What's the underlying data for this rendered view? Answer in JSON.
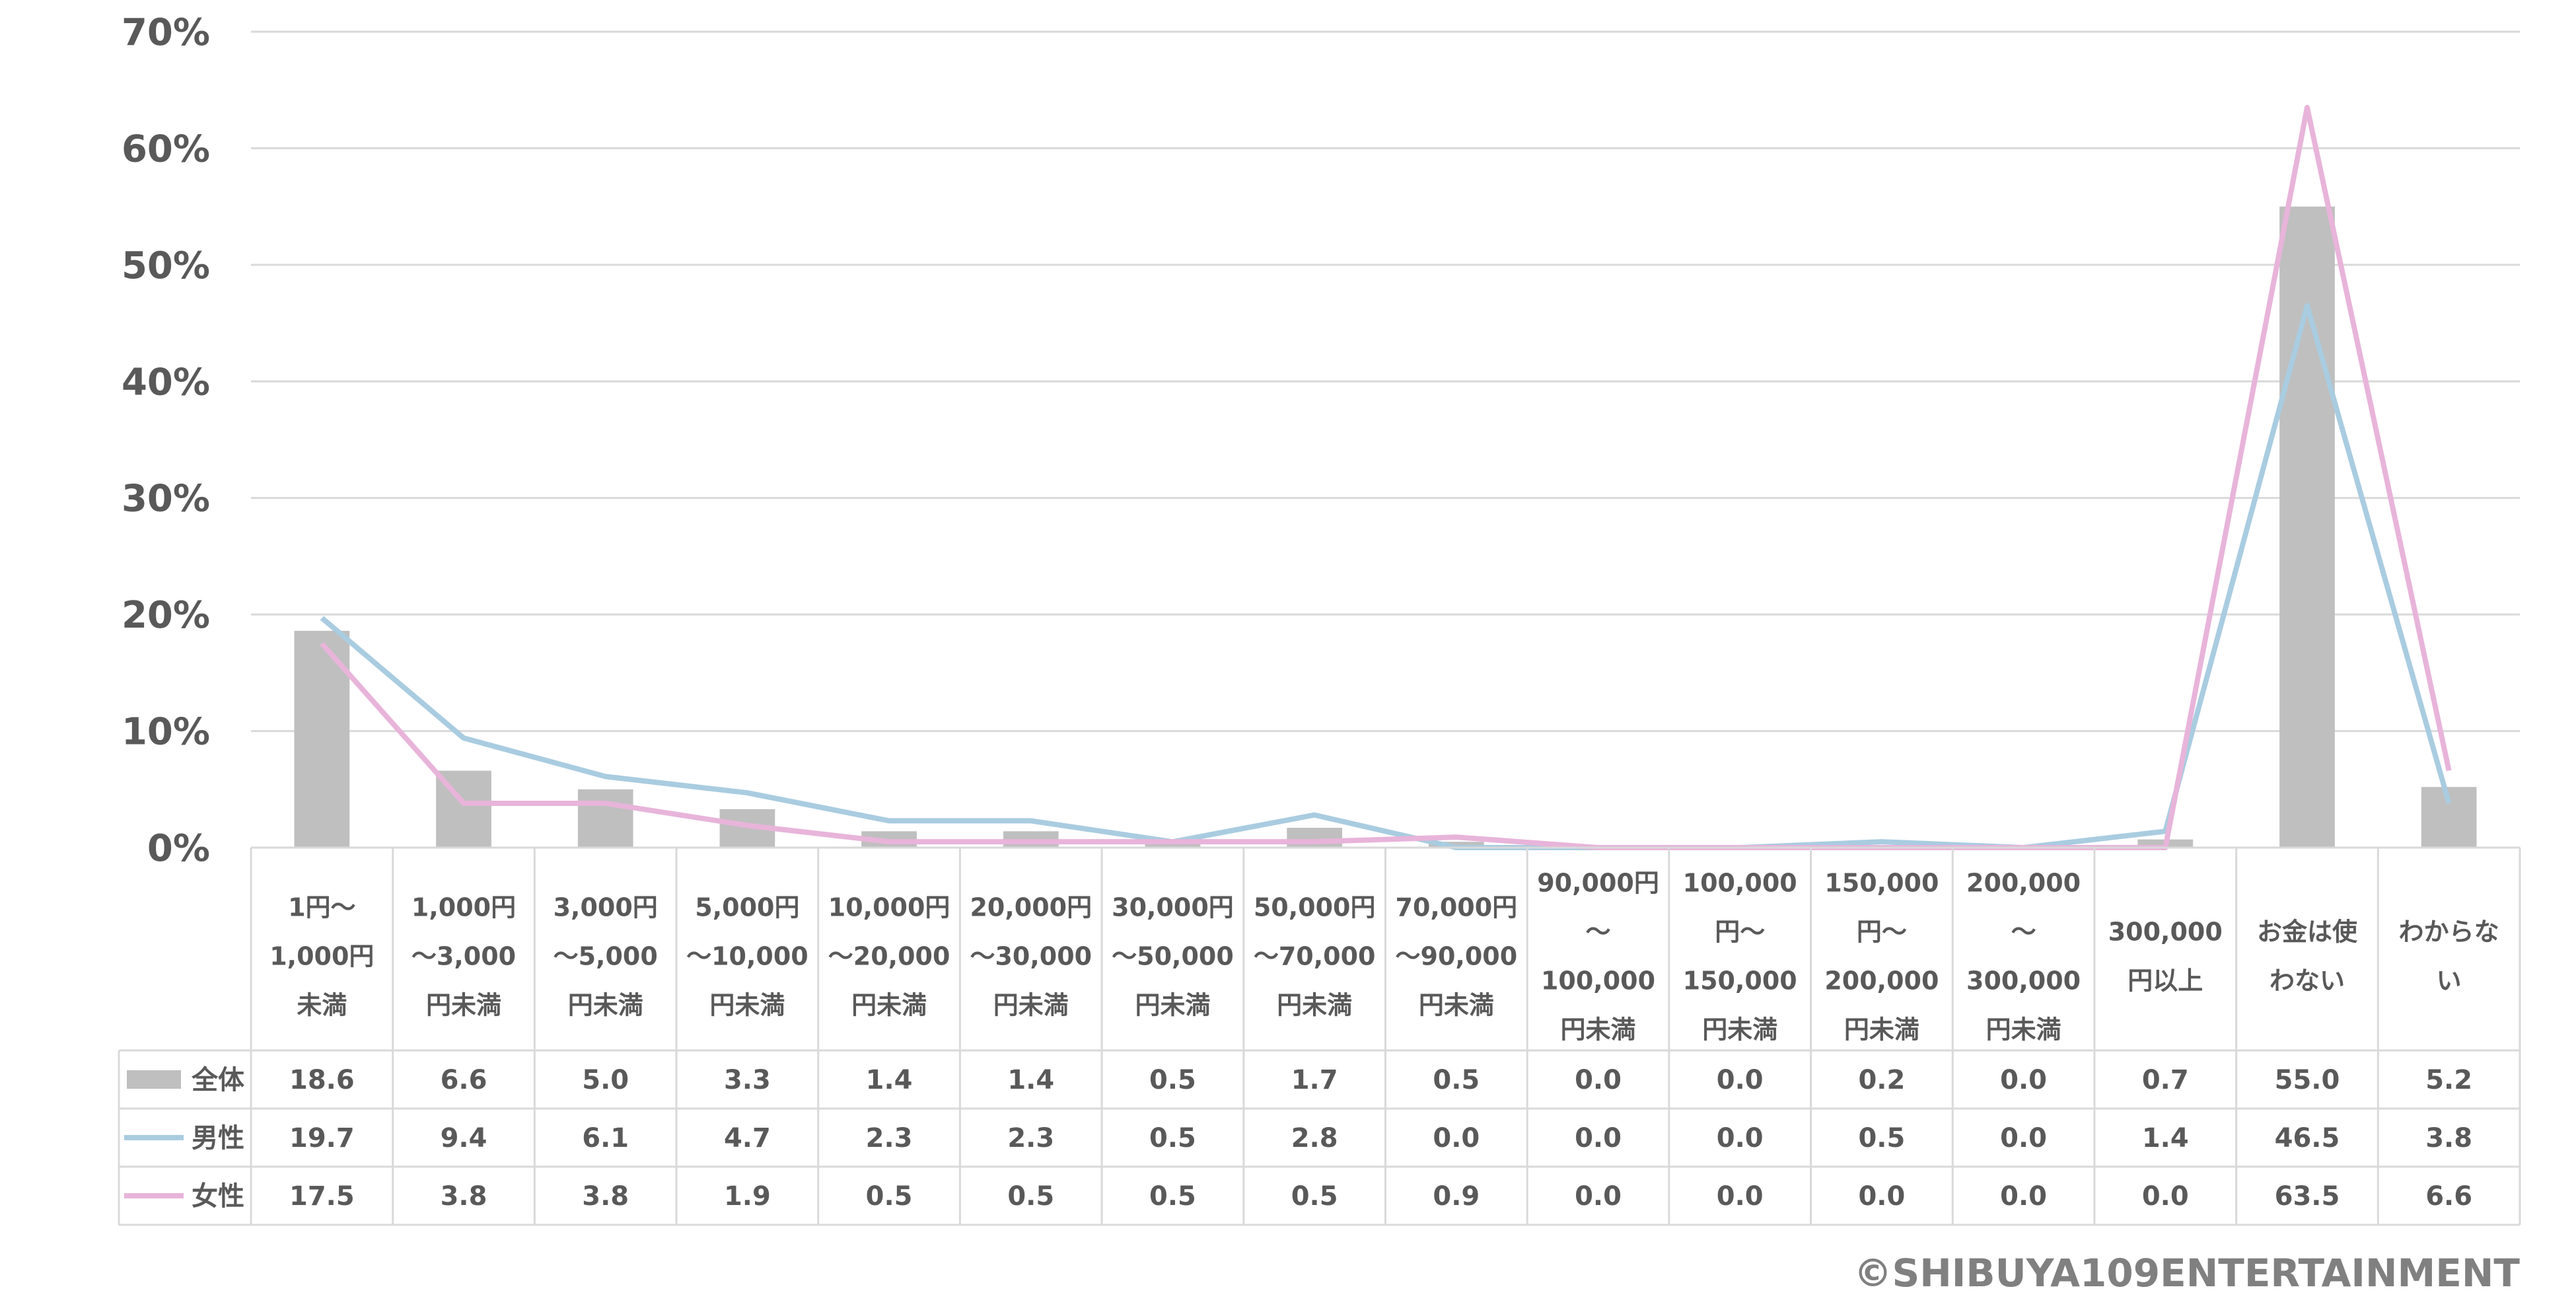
{
  "chart_data": {
    "type": "bar",
    "categories": [
      [
        "1円～",
        "1,000円",
        "未満"
      ],
      [
        "1,000円",
        "～3,000",
        "円未満"
      ],
      [
        "3,000円",
        "～5,000",
        "円未満"
      ],
      [
        "5,000円",
        "～10,000",
        "円未満"
      ],
      [
        "10,000円",
        "～20,000",
        "円未満"
      ],
      [
        "20,000円",
        "～30,000",
        "円未満"
      ],
      [
        "30,000円",
        "～50,000",
        "円未満"
      ],
      [
        "50,000円",
        "～70,000",
        "円未満"
      ],
      [
        "70,000円",
        "～90,000",
        "円未満"
      ],
      [
        "90,000円",
        "～",
        "100,000",
        "円未満"
      ],
      [
        "100,000",
        "円～",
        "150,000",
        "円未満"
      ],
      [
        "150,000",
        "円～",
        "200,000",
        "円未満"
      ],
      [
        "200,000",
        "～",
        "300,000",
        "円未満"
      ],
      [
        "300,000",
        "円以上"
      ],
      [
        "お金は使",
        "わない"
      ],
      [
        "わからな",
        "い"
      ]
    ],
    "series": [
      {
        "name": "全体",
        "kind": "bar",
        "color": "#BFBFBF",
        "values": [
          18.6,
          6.6,
          5.0,
          3.3,
          1.4,
          1.4,
          0.5,
          1.7,
          0.5,
          0.0,
          0.0,
          0.2,
          0.0,
          0.7,
          55.0,
          5.2
        ],
        "labels": [
          "18.6",
          "6.6",
          "5.0",
          "3.3",
          "1.4",
          "1.4",
          "0.5",
          "1.7",
          "0.5",
          "0.0",
          "0.0",
          "0.2",
          "0.0",
          "0.7",
          "55.0",
          "5.2"
        ]
      },
      {
        "name": "男性",
        "kind": "line",
        "color": "#A9CCE0",
        "values": [
          19.7,
          9.4,
          6.1,
          4.7,
          2.3,
          2.3,
          0.5,
          2.8,
          0.0,
          0.0,
          0.0,
          0.5,
          0.0,
          1.4,
          46.5,
          3.8
        ],
        "labels": [
          "19.7",
          "9.4",
          "6.1",
          "4.7",
          "2.3",
          "2.3",
          "0.5",
          "2.8",
          "0.0",
          "0.0",
          "0.0",
          "0.5",
          "0.0",
          "1.4",
          "46.5",
          "3.8"
        ]
      },
      {
        "name": "女性",
        "kind": "line",
        "color": "#E8B4DA",
        "values": [
          17.5,
          3.8,
          3.8,
          1.9,
          0.5,
          0.5,
          0.5,
          0.5,
          0.9,
          0.0,
          0.0,
          0.0,
          0.0,
          0.0,
          63.5,
          6.6
        ],
        "labels": [
          "17.5",
          "3.8",
          "3.8",
          "1.9",
          "0.5",
          "0.5",
          "0.5",
          "0.5",
          "0.9",
          "0.0",
          "0.0",
          "0.0",
          "0.0",
          "0.0",
          "63.5",
          "6.6"
        ]
      }
    ],
    "ylim": [
      0,
      70
    ],
    "yticks": [
      "0%",
      "10%",
      "20%",
      "30%",
      "40%",
      "50%",
      "60%",
      "70%"
    ],
    "grid": true,
    "legend": "data-table"
  },
  "copyright": "©SHIBUYA109ENTERTAINMENT"
}
